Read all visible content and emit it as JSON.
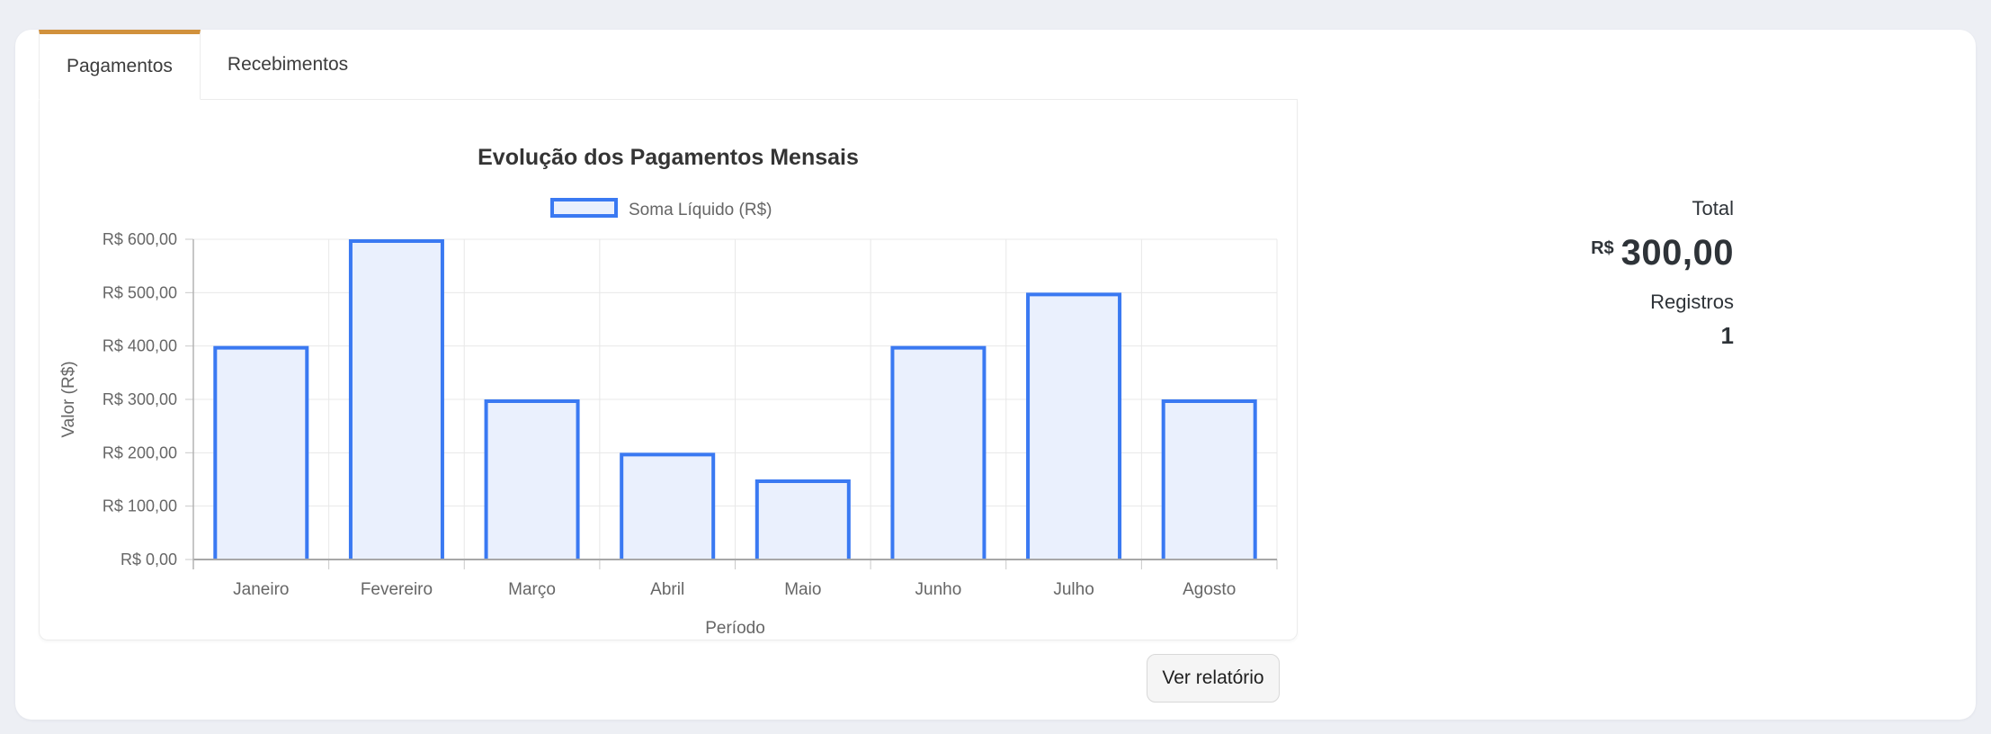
{
  "tabs": {
    "pagamentos": "Pagamentos",
    "recebimentos": "Recebimentos"
  },
  "summary": {
    "total_label": "Total",
    "currency": "R$",
    "total_value": "300,00",
    "registros_label": "Registros",
    "registros_value": "1"
  },
  "footer": {
    "report_button_label": "Ver relatório"
  },
  "colors": {
    "active_tab_accent": "#d1913c",
    "bar_border": "#3a79f2",
    "bar_fill": "#eaf0fd",
    "grid_line": "#e8e8e8",
    "axis_line": "#a8a8a8",
    "chart_text": "#666666",
    "title_text": "#343434",
    "page_background": "#edeff4"
  },
  "chart_data": {
    "type": "bar",
    "title": "Evolução dos Pagamentos Mensais",
    "legend": [
      "Soma Líquido (R$)"
    ],
    "legend_position": "top",
    "categories": [
      "Janeiro",
      "Fevereiro",
      "Março",
      "Abril",
      "Maio",
      "Junho",
      "Julho",
      "Agosto"
    ],
    "values": [
      400,
      600,
      300,
      200,
      150,
      400,
      500,
      300
    ],
    "xlabel": "Período",
    "ylabel": "Valor (R$)",
    "ylim": [
      0,
      600
    ],
    "y_ticks": [
      "R$ 0,00",
      "R$ 100,00",
      "R$ 200,00",
      "R$ 300,00",
      "R$ 400,00",
      "R$ 500,00",
      "R$ 600,00"
    ],
    "grid": true
  }
}
